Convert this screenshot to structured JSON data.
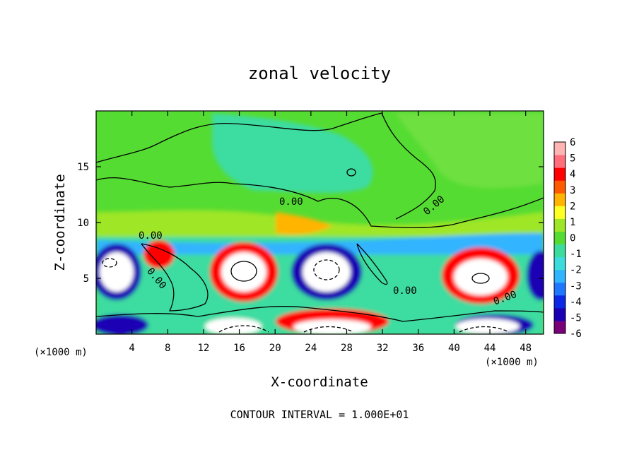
{
  "chart_data": {
    "type": "heatmap",
    "title": "zonal velocity",
    "xlabel": "X-coordinate",
    "ylabel": "Z-coordinate",
    "x_unit": "(×1000 m)",
    "x_ticks": [
      4,
      8,
      12,
      16,
      20,
      24,
      28,
      32,
      36,
      40,
      44,
      48
    ],
    "y_ticks": [
      5,
      10,
      15
    ],
    "xlim": [
      0,
      50
    ],
    "ylim": [
      0,
      20
    ],
    "colorbar": {
      "ticks": [
        6,
        5,
        4,
        3,
        2,
        1,
        0,
        -1,
        -2,
        -3,
        -4,
        -5,
        -6
      ],
      "min": -6,
      "max": 6,
      "colors": [
        "#7a007a",
        "#1a00b4",
        "#0a28e6",
        "#1e78ff",
        "#32b4ff",
        "#3cdcdc",
        "#3cdca0",
        "#55dc32",
        "#9ee628",
        "#ffff28",
        "#ffb400",
        "#ff5a00",
        "#ff0000",
        "#ff6e7a",
        "#ffb4b4"
      ]
    },
    "contour_labels": [
      "0.00",
      "0.00",
      "0.00",
      "0.00",
      "0.00",
      "0.00"
    ],
    "footer": "CONTOUR INTERVAL = 1.000E+01"
  }
}
